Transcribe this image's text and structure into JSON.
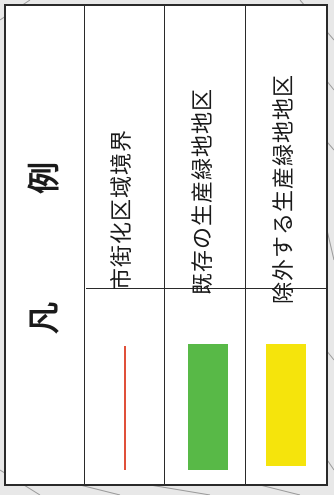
{
  "legend": {
    "title_chars": [
      "凡",
      "例"
    ],
    "items": [
      {
        "label": "市街化区域境界",
        "symbol": "line",
        "color": "#e0503a"
      },
      {
        "label": "既存の生産緑地地区",
        "symbol": "fill",
        "color": "#58b947"
      },
      {
        "label": "除外する生産緑地地区",
        "symbol": "fill",
        "color": "#f5e40c"
      }
    ]
  }
}
